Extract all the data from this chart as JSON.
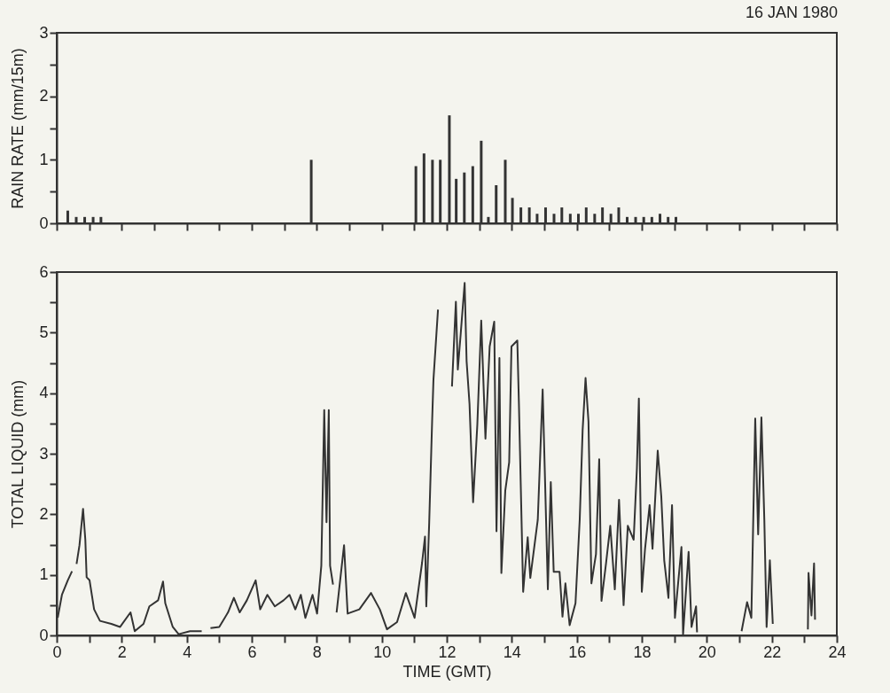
{
  "chart_data": [
    {
      "type": "bar",
      "title": "16 JAN 1980",
      "ylabel": "RAIN RATE (mm/15m)",
      "color": "#333333",
      "tick_labels": "y",
      "x": [
        0.34,
        0.6,
        0.86,
        1.12,
        1.36,
        7.83,
        11.05,
        11.3,
        11.56,
        11.8,
        12.08,
        12.29,
        12.54,
        12.8,
        13.06,
        13.28,
        13.52,
        13.8,
        14.02,
        14.28,
        14.54,
        14.78,
        15.04,
        15.3,
        15.54,
        15.8,
        16.05,
        16.29,
        16.55,
        16.79,
        17.05,
        17.29,
        17.55,
        17.81,
        18.06,
        18.31,
        18.56,
        18.81,
        19.05
      ],
      "values": [
        0.2,
        0.1,
        0.1,
        0.1,
        0.1,
        1.0,
        0.9,
        1.1,
        1.0,
        1.0,
        1.7,
        0.7,
        0.8,
        0.9,
        1.3,
        0.1,
        0.6,
        1.0,
        0.4,
        0.25,
        0.25,
        0.15,
        0.25,
        0.15,
        0.25,
        0.15,
        0.15,
        0.25,
        0.15,
        0.25,
        0.15,
        0.25,
        0.1,
        0.1,
        0.1,
        0.1,
        0.15,
        0.1,
        0.1
      ],
      "xlim": [
        0,
        24
      ],
      "xticks": [
        {
          "value": 0,
          "label": null
        },
        {
          "value": 1,
          "label": null
        },
        {
          "value": 2,
          "label": null
        },
        {
          "value": 3,
          "label": null
        },
        {
          "value": 4,
          "label": null
        },
        {
          "value": 5,
          "label": null
        },
        {
          "value": 6,
          "label": null
        },
        {
          "value": 7,
          "label": null
        },
        {
          "value": 8,
          "label": null
        },
        {
          "value": 9,
          "label": null
        },
        {
          "value": 10,
          "label": null
        },
        {
          "value": 11,
          "label": null
        },
        {
          "value": 12,
          "label": null
        },
        {
          "value": 13,
          "label": null
        },
        {
          "value": 14,
          "label": null
        },
        {
          "value": 15,
          "label": null
        },
        {
          "value": 16,
          "label": null
        },
        {
          "value": 17,
          "label": null
        },
        {
          "value": 18,
          "label": null
        },
        {
          "value": 19,
          "label": null
        },
        {
          "value": 20,
          "label": null
        },
        {
          "value": 21,
          "label": null
        },
        {
          "value": 22,
          "label": null
        },
        {
          "value": 23,
          "label": null
        },
        {
          "value": 24,
          "label": null
        }
      ],
      "ylim": [
        0,
        3
      ],
      "yticks": [
        0,
        {
          "value": 0.5,
          "label": null
        },
        1,
        {
          "value": 1.5,
          "label": null
        },
        2,
        {
          "value": 2.5,
          "label": null
        },
        3
      ]
    },
    {
      "type": "line",
      "xlabel": "TIME (GMT)",
      "ylabel": "TOTAL LIQUID (mm)",
      "color": "#333333",
      "x": [
        0.03,
        0.16,
        0.34,
        0.47,
        0.54,
        0.61,
        0.7,
        0.81,
        0.88,
        0.92,
        1.01,
        1.15,
        1.33,
        1.68,
        1.95,
        2.27,
        2.4,
        2.67,
        2.85,
        3.12,
        3.27,
        3.34,
        3.57,
        3.75,
        4.1,
        4.46,
        4.6,
        4.73,
        5.0,
        5.27,
        5.45,
        5.63,
        5.85,
        6.12,
        6.26,
        6.48,
        6.71,
        6.98,
        7.16,
        7.34,
        7.51,
        7.65,
        7.87,
        8.01,
        8.14,
        8.23,
        8.3,
        8.37,
        8.41,
        8.5,
        8.55,
        8.61,
        8.84,
        8.95,
        9.31,
        9.67,
        9.94,
        10.16,
        10.47,
        10.74,
        11.01,
        11.24,
        11.33,
        11.37,
        11.46,
        11.55,
        11.59,
        11.73,
        11.95,
        12.16,
        12.28,
        12.34,
        12.43,
        12.55,
        12.61,
        12.7,
        12.81,
        12.94,
        13.06,
        13.19,
        13.32,
        13.46,
        13.53,
        13.62,
        13.68,
        13.8,
        13.92,
        13.99,
        14.17,
        14.22,
        14.35,
        14.49,
        14.57,
        14.8,
        14.95,
        15.02,
        15.11,
        15.2,
        15.29,
        15.47,
        15.56,
        15.65,
        15.78,
        15.96,
        16.09,
        16.18,
        16.27,
        16.36,
        16.45,
        16.59,
        16.69,
        16.76,
        16.9,
        17.03,
        17.17,
        17.3,
        17.44,
        17.57,
        17.75,
        17.85,
        17.91,
        18.0,
        18.1,
        18.24,
        18.33,
        18.49,
        18.6,
        18.69,
        18.82,
        18.93,
        19.02,
        19.22,
        19.27,
        19.44,
        19.53,
        19.67,
        19.7,
        20.4,
        21.07,
        21.24,
        21.37,
        21.49,
        21.58,
        21.68,
        21.77,
        21.84,
        21.94,
        22.03,
        22.6,
        23.11,
        23.13,
        23.22,
        23.3,
        23.33
      ],
      "values": [
        0.29,
        0.67,
        0.91,
        1.06,
        null,
        1.18,
        1.49,
        2.09,
        1.58,
        0.96,
        0.91,
        0.43,
        0.24,
        0.19,
        0.14,
        0.38,
        0.07,
        0.19,
        0.48,
        0.58,
        0.89,
        0.53,
        0.14,
        0.02,
        0.07,
        0.07,
        null,
        0.12,
        0.14,
        0.38,
        0.62,
        0.38,
        0.58,
        0.91,
        0.43,
        0.67,
        0.48,
        0.58,
        0.67,
        0.43,
        0.67,
        0.29,
        0.67,
        0.36,
        1.15,
        3.72,
        1.87,
        3.72,
        1.15,
        0.84,
        null,
        0.38,
        1.49,
        0.36,
        0.43,
        0.7,
        0.43,
        0.1,
        0.22,
        0.7,
        0.29,
        1.2,
        1.63,
        0.48,
        1.87,
        3.55,
        4.22,
        5.38,
        null,
        4.11,
        5.51,
        4.39,
        4.99,
        5.82,
        4.53,
        3.82,
        2.2,
        3.48,
        5.2,
        3.25,
        4.77,
        5.18,
        1.72,
        4.58,
        1.03,
        2.39,
        2.86,
        4.77,
        4.87,
        3.82,
        0.72,
        1.62,
        0.95,
        1.91,
        4.06,
        2.63,
        0.76,
        2.53,
        1.05,
        1.05,
        0.31,
        0.86,
        0.17,
        0.53,
        1.91,
        3.39,
        4.25,
        3.53,
        0.86,
        1.34,
        2.91,
        0.57,
        1.19,
        1.81,
        0.76,
        2.24,
        0.5,
        1.81,
        1.58,
        2.77,
        3.91,
        0.72,
        1.43,
        2.15,
        1.43,
        3.05,
        2.29,
        1.24,
        0.62,
        2.15,
        0.29,
        1.46,
        0.02,
        1.38,
        0.14,
        0.48,
        0.05,
        null,
        0.07,
        0.55,
        0.29,
        3.58,
        1.67,
        3.6,
        1.91,
        0.14,
        1.24,
        0.19,
        null,
        0.1,
        1.03,
        0.33,
        1.19,
        0.26
      ],
      "xlim": [
        0,
        24
      ],
      "xticks": [
        0,
        {
          "value": 1,
          "label": null
        },
        2,
        {
          "value": 3,
          "label": null
        },
        4,
        {
          "value": 5,
          "label": null
        },
        6,
        {
          "value": 7,
          "label": null
        },
        8,
        {
          "value": 9,
          "label": null
        },
        10,
        {
          "value": 11,
          "label": null
        },
        12,
        {
          "value": 13,
          "label": null
        },
        14,
        {
          "value": 15,
          "label": null
        },
        16,
        {
          "value": 17,
          "label": null
        },
        18,
        {
          "value": 19,
          "label": null
        },
        20,
        {
          "value": 21,
          "label": null
        },
        22,
        {
          "value": 23,
          "label": null
        },
        24
      ],
      "ylim": [
        0,
        6
      ],
      "yticks": [
        0,
        {
          "value": 0.5,
          "label": null
        },
        1,
        {
          "value": 1.5,
          "label": null
        },
        2,
        {
          "value": 2.5,
          "label": null
        },
        3,
        {
          "value": 3.5,
          "label": null
        },
        4,
        {
          "value": 4.5,
          "label": null
        },
        5,
        {
          "value": 5.5,
          "label": null
        },
        6
      ]
    }
  ]
}
